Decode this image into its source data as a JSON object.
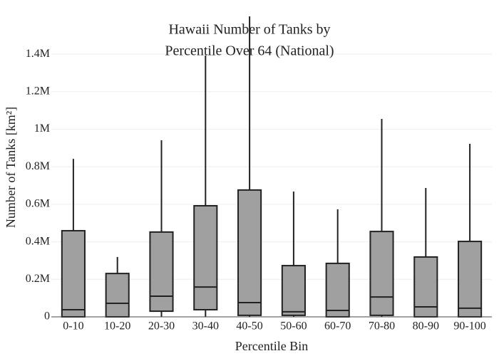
{
  "chart_data": {
    "type": "box",
    "title": [
      "Hawaii Number of Tanks by",
      "Percentile Over 64 (National)"
    ],
    "x_label": "Percentile Bin",
    "y_label": "Number of Tanks  [km²]",
    "categories": [
      "0-10",
      "10-20",
      "20-30",
      "30-40",
      "40-50",
      "50-60",
      "60-70",
      "70-80",
      "80-90",
      "90-100"
    ],
    "color": "#a0a0a0",
    "min": [
      0,
      0,
      0,
      0,
      0,
      0,
      0,
      0,
      0,
      0
    ],
    "q1": [
      0,
      0,
      30000,
      38000,
      8000,
      8000,
      0,
      8000,
      0,
      0
    ],
    "median": [
      38000,
      72000,
      110000,
      159000,
      76000,
      27000,
      34000,
      106000,
      53000,
      46000
    ],
    "q3": [
      459000,
      231000,
      452000,
      592000,
      676000,
      273000,
      285000,
      455000,
      319000,
      402000
    ],
    "max": [
      842000,
      319000,
      941000,
      1393000,
      1700000,
      668000,
      573000,
      1055000,
      687000,
      922000
    ],
    "ylim": [
      0,
      1600000
    ],
    "yticks": [
      0,
      {
        "value": 200000,
        "label": "0.2M"
      },
      {
        "value": 400000,
        "label": "0.4M"
      },
      {
        "value": 600000,
        "label": "0.6M"
      },
      {
        "value": 800000,
        "label": "0.8M"
      },
      {
        "value": 1000000,
        "label": "1M"
      },
      {
        "value": 1200000,
        "label": "1.2M"
      },
      {
        "value": 1400000,
        "label": "1.4M"
      }
    ],
    "grid": true
  }
}
